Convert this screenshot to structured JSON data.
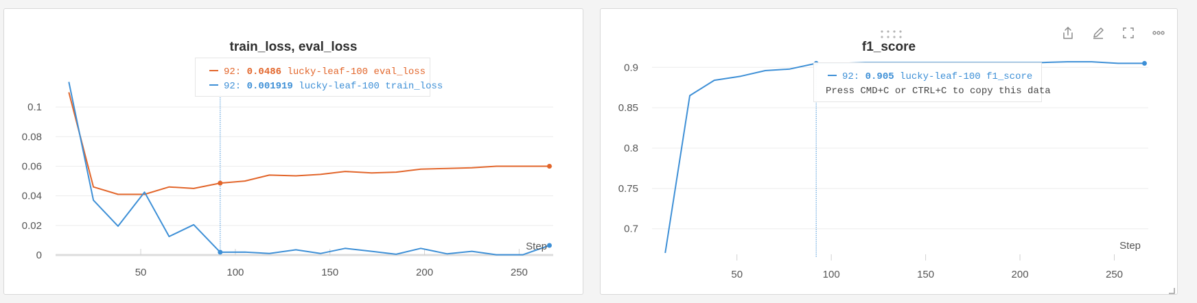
{
  "panels": [
    {
      "title": "train_loss, eval_loss",
      "step_label": "Step",
      "tooltip": {
        "rows": [
          {
            "step": "92:",
            "value": "0.0486",
            "run": "lucky-leaf-100 eval_loss",
            "color": "#e2652a"
          },
          {
            "step": "92:",
            "value": "0.001919",
            "run": "lucky-leaf-100 train_loss",
            "color": "#3d8fd6"
          }
        ]
      },
      "chart_data": {
        "type": "line",
        "title": "train_loss, eval_loss",
        "xlabel": "Step",
        "xlim": [
          5,
          268
        ],
        "ylim": [
          0,
          0.12
        ],
        "xticks": [
          50,
          100,
          150,
          200,
          250
        ],
        "yticks": [
          0,
          0.02,
          0.04,
          0.06,
          0.08,
          0.1
        ],
        "ytick_labels": [
          "0",
          "0.02",
          "0.04",
          "0.06",
          "0.08",
          "0.1"
        ],
        "hover_x": 92,
        "series": [
          {
            "name": "lucky-leaf-100 eval_loss",
            "color": "#e2652a",
            "x": [
              12,
              25,
              38,
              52,
              65,
              78,
              92,
              105,
              118,
              132,
              145,
              158,
              172,
              185,
              198,
              212,
              225,
              238,
              252,
              266
            ],
            "y": [
              0.11,
              0.046,
              0.041,
              0.041,
              0.046,
              0.045,
              0.0486,
              0.05,
              0.054,
              0.0535,
              0.0545,
              0.0565,
              0.0555,
              0.056,
              0.058,
              0.0585,
              0.059,
              0.06,
              0.06,
              0.06
            ]
          },
          {
            "name": "lucky-leaf-100 train_loss",
            "color": "#3d8fd6",
            "x": [
              12,
              25,
              38,
              52,
              65,
              78,
              92,
              105,
              118,
              132,
              145,
              158,
              172,
              185,
              198,
              212,
              225,
              238,
              252,
              266
            ],
            "y": [
              0.117,
              0.037,
              0.0195,
              0.0425,
              0.0125,
              0.0205,
              0.001919,
              0.002,
              0.001,
              0.0035,
              0.001,
              0.0045,
              0.0025,
              0.0005,
              0.0045,
              0.0008,
              0.0025,
              0.0002,
              0.0002,
              0.0065
            ]
          }
        ]
      }
    },
    {
      "title": "f1_score",
      "step_label": "Step",
      "tooltip": {
        "rows": [
          {
            "step": "92:",
            "value": "0.905",
            "run": "lucky-leaf-100 f1_score",
            "color": "#3d8fd6"
          }
        ],
        "hint": "Press CMD+C or CTRL+C to copy this data"
      },
      "toolbar": {
        "icons": [
          "share-icon",
          "edit-pencil-icon",
          "fullscreen-icon",
          "more-options-icon"
        ]
      },
      "chart_data": {
        "type": "line",
        "title": "f1_score",
        "xlabel": "Step",
        "xlim": [
          5,
          268
        ],
        "ylim": [
          0.67,
          0.913
        ],
        "xticks": [
          50,
          100,
          150,
          200,
          250
        ],
        "yticks": [
          0.7,
          0.75,
          0.8,
          0.85,
          0.9
        ],
        "ytick_labels": [
          "0.7",
          "0.75",
          "0.8",
          "0.85",
          "0.9"
        ],
        "hover_x": 92,
        "series": [
          {
            "name": "lucky-leaf-100 f1_score",
            "color": "#3d8fd6",
            "x": [
              12,
              25,
              38,
              52,
              65,
              78,
              92,
              105,
              118,
              132,
              145,
              158,
              172,
              185,
              198,
              212,
              225,
              238,
              252,
              266
            ],
            "y": [
              0.67,
              0.865,
              0.884,
              0.889,
              0.896,
              0.898,
              0.905,
              0.905,
              0.906,
              0.906,
              0.906,
              0.906,
              0.906,
              0.906,
              0.906,
              0.906,
              0.907,
              0.907,
              0.905,
              0.905
            ]
          }
        ]
      }
    }
  ]
}
